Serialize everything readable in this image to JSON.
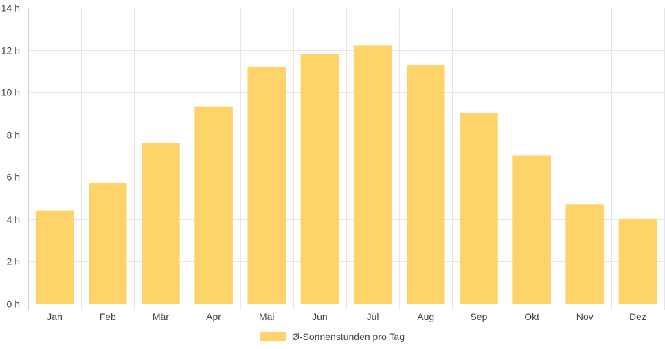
{
  "chart_data": {
    "type": "bar",
    "categories": [
      "Jan",
      "Feb",
      "Mär",
      "Apr",
      "Mai",
      "Jun",
      "Jul",
      "Aug",
      "Sep",
      "Okt",
      "Nov",
      "Dez"
    ],
    "series": [
      {
        "name": "Ø-Sonnenstunden pro Tag",
        "values": [
          4.4,
          5.7,
          7.6,
          9.3,
          11.2,
          11.8,
          12.2,
          11.3,
          9.0,
          7.0,
          4.7,
          4.0
        ],
        "color": "#fdd36a"
      }
    ],
    "ylim": [
      0,
      14
    ],
    "y_ticks": [
      0,
      2,
      4,
      6,
      8,
      10,
      12,
      14
    ],
    "y_tick_suffix": " h",
    "grid": true,
    "legend_position": "bottom-center",
    "grid_color": "#e6e6e6"
  }
}
